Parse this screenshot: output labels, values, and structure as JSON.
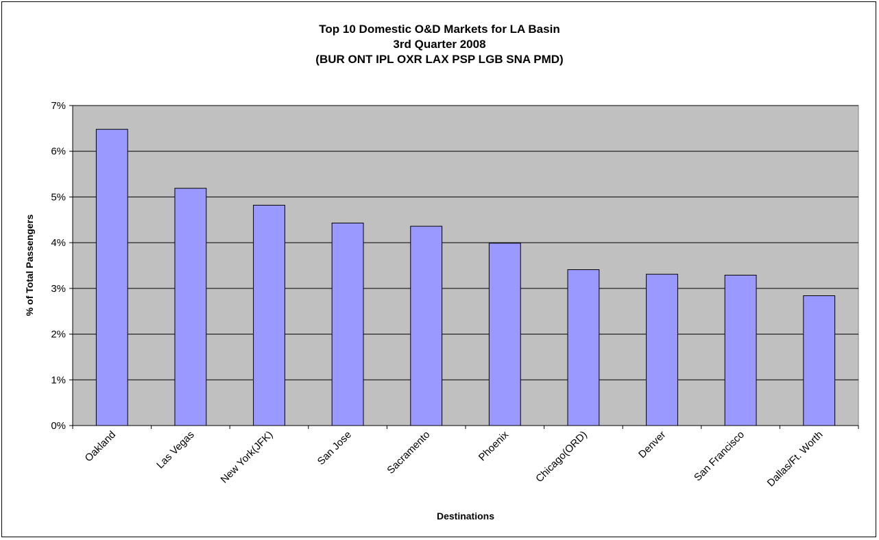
{
  "chart_data": {
    "type": "bar",
    "title": [
      "Top 10 Domestic O&D Markets for LA Basin",
      "3rd Quarter 2008",
      "(BUR ONT IPL OXR LAX PSP LGB SNA PMD)"
    ],
    "xlabel": "Destinations",
    "ylabel": "% of Total Passengers",
    "categories": [
      "Oakland",
      "Las Vegas",
      "New York(JFK)",
      "San Jose",
      "Sacramento",
      "Phoenix",
      "Chicago(ORD)",
      "Denver",
      "San Francisco",
      "Dallas/Ft. Worth"
    ],
    "values": [
      6.48,
      5.19,
      4.82,
      4.43,
      4.36,
      3.99,
      3.41,
      3.31,
      3.29,
      2.84
    ],
    "ylim": [
      0,
      7
    ],
    "yticks": [
      0,
      1,
      2,
      3,
      4,
      5,
      6,
      7
    ],
    "ytick_labels": [
      "0%",
      "1%",
      "2%",
      "3%",
      "4%",
      "5%",
      "6%",
      "7%"
    ],
    "grid": true,
    "legend": "none",
    "colors": {
      "bar": "#9999ff",
      "plot_bg": "#c0c0c0",
      "grid": "#000000"
    }
  }
}
